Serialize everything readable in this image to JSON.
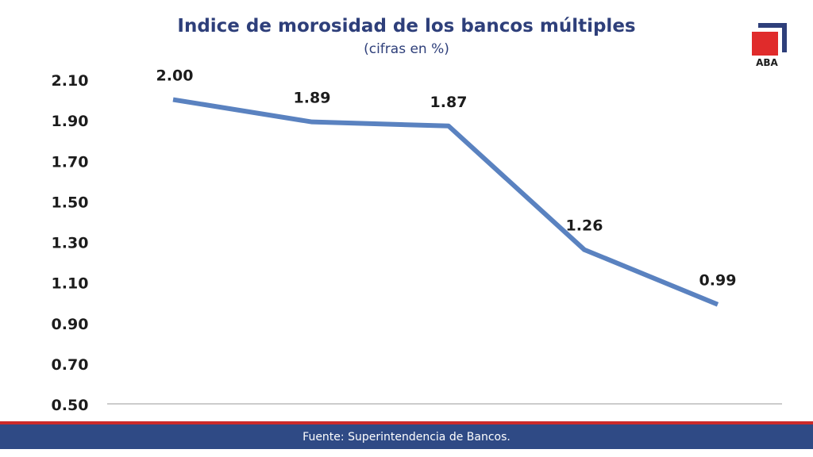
{
  "chart_data": {
    "type": "line",
    "title": "Indice de morosidad de los bancos múltiples",
    "subtitle": "(cifras en %)",
    "xlabel": "",
    "ylabel": "",
    "ylim": [
      0.5,
      2.1
    ],
    "y_ticks": [
      "2.10",
      "1.90",
      "1.70",
      "1.50",
      "1.30",
      "1.10",
      "0.90",
      "0.70",
      "0.50"
    ],
    "grid": false,
    "series": [
      {
        "values": [
          2.0,
          1.89,
          1.87,
          1.26,
          0.99
        ],
        "labels": [
          "2.00",
          "1.89",
          "1.87",
          "1.26",
          "0.99"
        ],
        "color": "#5a82c0"
      }
    ]
  },
  "logo": {
    "text": "ABA",
    "square_color": "#e02b2b",
    "frame_color": "#2e3f7a"
  },
  "footer": {
    "text": "Fuente: Superintendencia de Bancos.",
    "background": "#2f4a85",
    "accent": "#cc2a2a"
  }
}
